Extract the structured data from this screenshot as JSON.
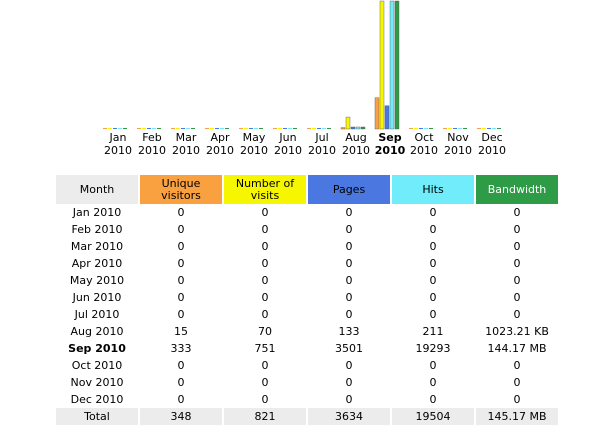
{
  "chart_data": {
    "type": "bar",
    "categories": [
      "Jan 2010",
      "Feb 2010",
      "Mar 2010",
      "Apr 2010",
      "May 2010",
      "Jun 2010",
      "Jul 2010",
      "Aug 2010",
      "Sep 2010",
      "Oct 2010",
      "Nov 2010",
      "Dec 2010"
    ],
    "month_labels": [
      {
        "month": "Jan",
        "year": "2010"
      },
      {
        "month": "Feb",
        "year": "2010"
      },
      {
        "month": "Mar",
        "year": "2010"
      },
      {
        "month": "Apr",
        "year": "2010"
      },
      {
        "month": "May",
        "year": "2010"
      },
      {
        "month": "Jun",
        "year": "2010"
      },
      {
        "month": "Jul",
        "year": "2010"
      },
      {
        "month": "Aug",
        "year": "2010"
      },
      {
        "month": "Sep",
        "year": "2010"
      },
      {
        "month": "Oct",
        "year": "2010"
      },
      {
        "month": "Nov",
        "year": "2010"
      },
      {
        "month": "Dec",
        "year": "2010"
      }
    ],
    "current_month": "Sep 2010",
    "series": [
      {
        "name": "Unique visitors",
        "color": "#f9a040",
        "values": [
          0,
          0,
          0,
          0,
          0,
          0,
          0,
          15,
          333,
          0,
          0,
          0
        ]
      },
      {
        "name": "Number of visits",
        "color": "#f6f600",
        "values": [
          0,
          0,
          0,
          0,
          0,
          0,
          0,
          70,
          751,
          0,
          0,
          0
        ]
      },
      {
        "name": "Pages",
        "color": "#4b78e0",
        "values": [
          0,
          0,
          0,
          0,
          0,
          0,
          0,
          133,
          3501,
          0,
          0,
          0
        ]
      },
      {
        "name": "Hits",
        "color": "#70ecfa",
        "values": [
          0,
          0,
          0,
          0,
          0,
          0,
          0,
          211,
          19293,
          0,
          0,
          0
        ]
      },
      {
        "name": "Bandwidth",
        "color": "#2e9b47",
        "values_mb": [
          0,
          0,
          0,
          0,
          0,
          0,
          0,
          1.0,
          144.17,
          0,
          0,
          0
        ]
      }
    ]
  },
  "table": {
    "headers": {
      "month": "Month",
      "unique_visitors_1": "Unique",
      "unique_visitors_2": "visitors",
      "visits_1": "Number of",
      "visits_2": "visits",
      "pages": "Pages",
      "hits": "Hits",
      "bandwidth": "Bandwidth"
    },
    "rows": [
      {
        "month": "Jan 2010",
        "uv": "0",
        "visits": "0",
        "pages": "0",
        "hits": "0",
        "bw": "0"
      },
      {
        "month": "Feb 2010",
        "uv": "0",
        "visits": "0",
        "pages": "0",
        "hits": "0",
        "bw": "0"
      },
      {
        "month": "Mar 2010",
        "uv": "0",
        "visits": "0",
        "pages": "0",
        "hits": "0",
        "bw": "0"
      },
      {
        "month": "Apr 2010",
        "uv": "0",
        "visits": "0",
        "pages": "0",
        "hits": "0",
        "bw": "0"
      },
      {
        "month": "May 2010",
        "uv": "0",
        "visits": "0",
        "pages": "0",
        "hits": "0",
        "bw": "0"
      },
      {
        "month": "Jun 2010",
        "uv": "0",
        "visits": "0",
        "pages": "0",
        "hits": "0",
        "bw": "0"
      },
      {
        "month": "Jul 2010",
        "uv": "0",
        "visits": "0",
        "pages": "0",
        "hits": "0",
        "bw": "0"
      },
      {
        "month": "Aug 2010",
        "uv": "15",
        "visits": "70",
        "pages": "133",
        "hits": "211",
        "bw": "1023.21 KB"
      },
      {
        "month": "Sep 2010",
        "uv": "333",
        "visits": "751",
        "pages": "3501",
        "hits": "19293",
        "bw": "144.17 MB"
      },
      {
        "month": "Oct 2010",
        "uv": "0",
        "visits": "0",
        "pages": "0",
        "hits": "0",
        "bw": "0"
      },
      {
        "month": "Nov 2010",
        "uv": "0",
        "visits": "0",
        "pages": "0",
        "hits": "0",
        "bw": "0"
      },
      {
        "month": "Dec 2010",
        "uv": "0",
        "visits": "0",
        "pages": "0",
        "hits": "0",
        "bw": "0"
      }
    ],
    "total": {
      "label": "Total",
      "uv": "348",
      "visits": "821",
      "pages": "3634",
      "hits": "19504",
      "bw": "145.17 MB"
    }
  }
}
